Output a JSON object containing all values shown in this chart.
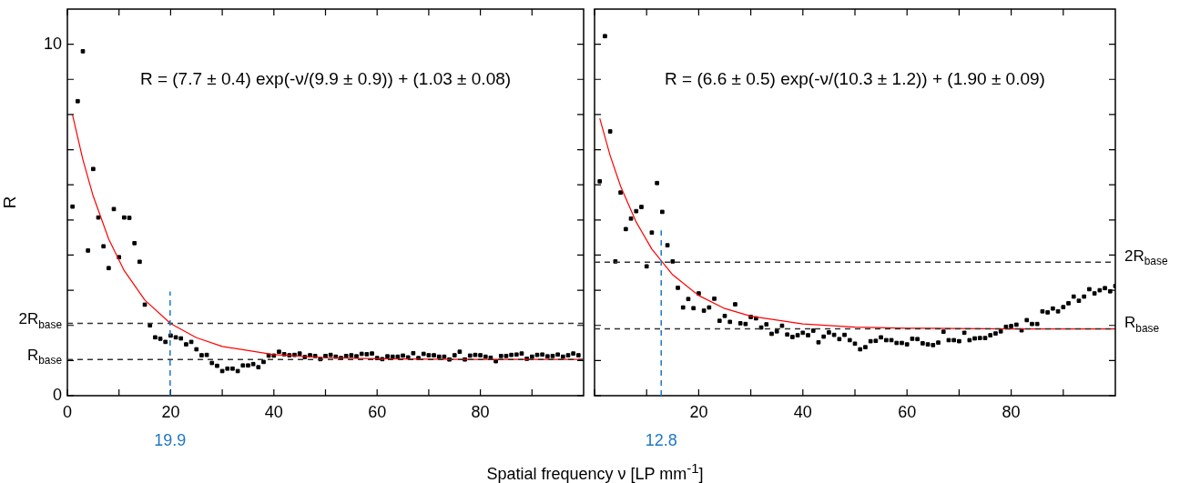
{
  "chart_data": [
    {
      "type": "scatter",
      "xlabel": "Spatial frequency ν [LP mm$^{-1}$]",
      "ylabel": "R",
      "xlim": [
        0,
        100
      ],
      "ylim": [
        0,
        11
      ],
      "xticks": [
        0,
        {
          "value": 10,
          "label": null
        },
        20,
        {
          "value": 30,
          "label": null
        },
        40,
        {
          "value": 50,
          "label": null
        },
        60,
        {
          "value": 70,
          "label": null
        },
        80,
        {
          "value": 90,
          "label": null
        }
      ],
      "yticks": [
        0,
        {
          "value": 1,
          "label": null
        },
        {
          "value": 2,
          "label": null
        },
        {
          "value": 3,
          "label": null
        },
        {
          "value": 4,
          "label": null
        },
        {
          "value": 5,
          "label": null
        },
        {
          "value": 6,
          "label": null
        },
        {
          "value": 7,
          "label": null
        },
        {
          "value": 8,
          "label": null
        },
        {
          "value": 9,
          "label": null
        },
        10
      ],
      "grid": false,
      "legend": false,
      "annotations": [
        "R = (7.7 ± 0.4) exp(-ν/(9.9 ± 0.9)) + (1.03 ± 0.08)"
      ],
      "ref_lines": [
        {
          "axis": "y",
          "value": 2.06,
          "label": "2R$_{base}$",
          "color": "#333333",
          "line_style": "dashed"
        },
        {
          "axis": "y",
          "value": 1.03,
          "label": "R$_{base}$",
          "color": "#333333",
          "line_style": "dashed"
        },
        {
          "axis": "x",
          "value": 19.9,
          "label": "19.9",
          "color": "#1f77c4",
          "line_style": "dashed"
        }
      ],
      "series": [
        {
          "type": "scatter",
          "color": "#000000",
          "marker": "square",
          "x": [
            1,
            2,
            3,
            4,
            5,
            6,
            7,
            8,
            9,
            10,
            11,
            12,
            13,
            14,
            15,
            16,
            17,
            18,
            19,
            20,
            21,
            22,
            23,
            24,
            25,
            26,
            27,
            28,
            29,
            30,
            31,
            32,
            33,
            34,
            35,
            36,
            37,
            38,
            39,
            40,
            41,
            42,
            43,
            44,
            45,
            46,
            47,
            48,
            49,
            50,
            51,
            52,
            53,
            54,
            55,
            56,
            57,
            58,
            59,
            60,
            61,
            62,
            63,
            64,
            65,
            66,
            67,
            68,
            69,
            70,
            71,
            72,
            73,
            74,
            75,
            76,
            77,
            78,
            79,
            80,
            81,
            82,
            83,
            84,
            85,
            86,
            87,
            88,
            89,
            90,
            91,
            92,
            93,
            94,
            95,
            96,
            97,
            98,
            99
          ],
          "values": [
            5.38,
            8.38,
            9.8,
            4.13,
            6.45,
            5.07,
            4.25,
            3.63,
            5.31,
            3.94,
            5.07,
            5.06,
            4.34,
            3.81,
            2.59,
            2.0,
            1.66,
            1.62,
            1.53,
            1.71,
            1.66,
            1.63,
            1.46,
            1.53,
            1.32,
            1.15,
            1.16,
            0.93,
            0.85,
            0.7,
            0.77,
            0.77,
            0.7,
            0.86,
            0.86,
            0.9,
            0.81,
            0.96,
            1.14,
            1.14,
            1.25,
            1.18,
            1.15,
            1.16,
            1.2,
            1.1,
            1.15,
            1.13,
            1.04,
            1.13,
            1.16,
            1.11,
            1.07,
            1.13,
            1.15,
            1.12,
            1.19,
            1.18,
            1.2,
            1.07,
            1.04,
            1.12,
            1.11,
            1.11,
            1.14,
            1.09,
            1.21,
            1.07,
            1.19,
            1.15,
            1.15,
            1.11,
            1.11,
            1.03,
            1.15,
            1.25,
            1.03,
            1.14,
            1.16,
            1.15,
            1.11,
            1.08,
            0.98,
            1.13,
            1.13,
            1.16,
            1.17,
            1.2,
            1.05,
            1.11,
            1.16,
            1.17,
            1.12,
            1.13,
            1.17,
            1.11,
            1.15,
            1.2,
            1.15
          ]
        },
        {
          "type": "line",
          "color": "#ff0000",
          "marker": "none",
          "x": [
            1,
            3,
            5,
            8,
            11,
            15,
            20,
            25,
            30,
            40,
            50,
            60,
            80,
            100
          ],
          "values": [
            7.99,
            6.72,
            5.68,
            4.46,
            3.56,
            2.72,
            2.05,
            1.65,
            1.4,
            1.17,
            1.08,
            1.05,
            1.03,
            1.03
          ]
        }
      ]
    },
    {
      "type": "scatter",
      "xlim": [
        0,
        100
      ],
      "ylim": [
        0,
        11
      ],
      "xticks": [
        {
          "value": 0,
          "label": null
        },
        {
          "value": 10,
          "label": null
        },
        20,
        {
          "value": 30,
          "label": null
        },
        40,
        {
          "value": 50,
          "label": null
        },
        60,
        {
          "value": 70,
          "label": null
        },
        80,
        {
          "value": 90,
          "label": null
        }
      ],
      "yticks": [
        0,
        1,
        2,
        3,
        4,
        5,
        6,
        7,
        8,
        9,
        10
      ],
      "tick_labels": "x",
      "grid": false,
      "legend": false,
      "annotations": [
        "R = (6.6 ± 0.5) exp(-ν/(10.3 ± 1.2)) + (1.90 ± 0.09)"
      ],
      "ref_lines": [
        {
          "axis": "y",
          "value": 3.8,
          "label": "2R$_{base}$",
          "color": "#333333",
          "line_style": "dashed"
        },
        {
          "axis": "y",
          "value": 1.9,
          "label": "R$_{base}$",
          "color": "#333333",
          "line_style": "dashed"
        },
        {
          "axis": "x",
          "value": 12.8,
          "label": "12.8",
          "color": "#1f77c4",
          "line_style": "dashed"
        }
      ],
      "series": [
        {
          "type": "scatter",
          "color": "#000000",
          "marker": "square",
          "x": [
            1,
            2,
            3,
            4,
            5,
            6,
            7,
            8,
            9,
            10,
            11,
            12,
            13,
            14,
            15,
            16,
            17,
            18,
            19,
            20,
            21,
            22,
            23,
            24,
            25,
            26,
            27,
            28,
            29,
            30,
            31,
            32,
            33,
            34,
            35,
            36,
            37,
            38,
            39,
            40,
            41,
            42,
            43,
            44,
            45,
            46,
            47,
            48,
            49,
            50,
            51,
            52,
            53,
            54,
            55,
            56,
            57,
            58,
            59,
            60,
            61,
            62,
            63,
            64,
            65,
            66,
            67,
            68,
            69,
            70,
            71,
            72,
            73,
            74,
            75,
            76,
            77,
            78,
            79,
            80,
            81,
            82,
            83,
            84,
            85,
            86,
            87,
            88,
            89,
            90,
            91,
            92,
            93,
            94,
            95,
            96,
            97,
            98,
            99,
            100
          ],
          "values": [
            6.1,
            10.23,
            7.52,
            3.82,
            5.78,
            4.74,
            5.04,
            5.25,
            5.37,
            3.68,
            4.64,
            6.05,
            5.23,
            4.28,
            3.82,
            3.07,
            2.51,
            2.75,
            2.49,
            2.91,
            2.42,
            2.51,
            2.76,
            2.13,
            2.27,
            2.1,
            2.6,
            2.06,
            2.04,
            2.24,
            2.2,
            1.94,
            2.03,
            1.76,
            1.83,
            1.99,
            1.74,
            1.67,
            1.72,
            1.79,
            1.72,
            1.85,
            1.52,
            1.68,
            1.8,
            1.73,
            1.61,
            1.73,
            1.58,
            1.48,
            1.32,
            1.38,
            1.55,
            1.56,
            1.66,
            1.58,
            1.58,
            1.5,
            1.5,
            1.46,
            1.62,
            1.61,
            1.49,
            1.46,
            1.44,
            1.51,
            1.82,
            1.58,
            1.58,
            1.55,
            1.79,
            1.58,
            1.63,
            1.64,
            1.64,
            1.72,
            1.77,
            1.83,
            1.96,
            1.98,
            2.02,
            1.86,
            2.15,
            2.04,
            2.04,
            2.4,
            2.37,
            2.48,
            2.4,
            2.52,
            2.63,
            2.82,
            2.7,
            2.82,
            3.03,
            2.91,
            3.0,
            3.06,
            2.97,
            3.12
          ]
        },
        {
          "type": "line",
          "color": "#ff0000",
          "marker": "none",
          "x": [
            1,
            3,
            5,
            8,
            11,
            15,
            20,
            25,
            30,
            40,
            50,
            60,
            80,
            100
          ],
          "values": [
            7.89,
            6.83,
            5.96,
            4.94,
            4.17,
            3.44,
            2.85,
            2.48,
            2.26,
            2.04,
            1.95,
            1.92,
            1.9,
            1.9
          ]
        }
      ]
    }
  ]
}
